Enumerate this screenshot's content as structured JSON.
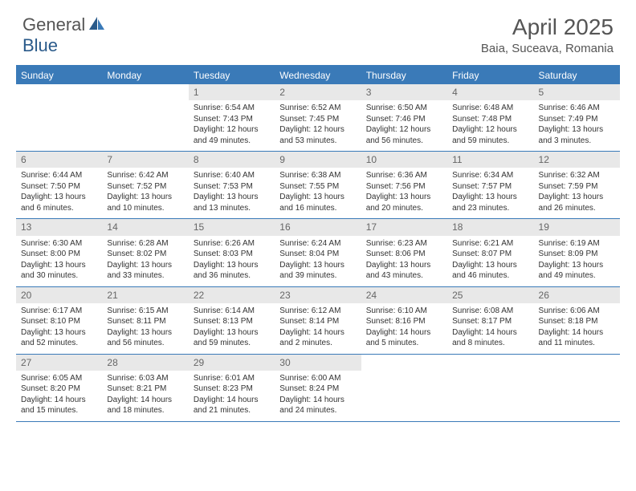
{
  "brand": {
    "part1": "General",
    "part2": "Blue"
  },
  "title": "April 2025",
  "location": "Baia, Suceava, Romania",
  "colors": {
    "primary": "#3a7ab8",
    "header_bg": "#3a7ab8",
    "daynum_bg": "#e8e8e8",
    "text": "#333333",
    "muted": "#666666",
    "white": "#ffffff"
  },
  "days_of_week": [
    "Sunday",
    "Monday",
    "Tuesday",
    "Wednesday",
    "Thursday",
    "Friday",
    "Saturday"
  ],
  "weeks": [
    [
      {
        "n": "",
        "sunrise": "",
        "sunset": "",
        "daylight": ""
      },
      {
        "n": "",
        "sunrise": "",
        "sunset": "",
        "daylight": ""
      },
      {
        "n": "1",
        "sunrise": "Sunrise: 6:54 AM",
        "sunset": "Sunset: 7:43 PM",
        "daylight": "Daylight: 12 hours and 49 minutes."
      },
      {
        "n": "2",
        "sunrise": "Sunrise: 6:52 AM",
        "sunset": "Sunset: 7:45 PM",
        "daylight": "Daylight: 12 hours and 53 minutes."
      },
      {
        "n": "3",
        "sunrise": "Sunrise: 6:50 AM",
        "sunset": "Sunset: 7:46 PM",
        "daylight": "Daylight: 12 hours and 56 minutes."
      },
      {
        "n": "4",
        "sunrise": "Sunrise: 6:48 AM",
        "sunset": "Sunset: 7:48 PM",
        "daylight": "Daylight: 12 hours and 59 minutes."
      },
      {
        "n": "5",
        "sunrise": "Sunrise: 6:46 AM",
        "sunset": "Sunset: 7:49 PM",
        "daylight": "Daylight: 13 hours and 3 minutes."
      }
    ],
    [
      {
        "n": "6",
        "sunrise": "Sunrise: 6:44 AM",
        "sunset": "Sunset: 7:50 PM",
        "daylight": "Daylight: 13 hours and 6 minutes."
      },
      {
        "n": "7",
        "sunrise": "Sunrise: 6:42 AM",
        "sunset": "Sunset: 7:52 PM",
        "daylight": "Daylight: 13 hours and 10 minutes."
      },
      {
        "n": "8",
        "sunrise": "Sunrise: 6:40 AM",
        "sunset": "Sunset: 7:53 PM",
        "daylight": "Daylight: 13 hours and 13 minutes."
      },
      {
        "n": "9",
        "sunrise": "Sunrise: 6:38 AM",
        "sunset": "Sunset: 7:55 PM",
        "daylight": "Daylight: 13 hours and 16 minutes."
      },
      {
        "n": "10",
        "sunrise": "Sunrise: 6:36 AM",
        "sunset": "Sunset: 7:56 PM",
        "daylight": "Daylight: 13 hours and 20 minutes."
      },
      {
        "n": "11",
        "sunrise": "Sunrise: 6:34 AM",
        "sunset": "Sunset: 7:57 PM",
        "daylight": "Daylight: 13 hours and 23 minutes."
      },
      {
        "n": "12",
        "sunrise": "Sunrise: 6:32 AM",
        "sunset": "Sunset: 7:59 PM",
        "daylight": "Daylight: 13 hours and 26 minutes."
      }
    ],
    [
      {
        "n": "13",
        "sunrise": "Sunrise: 6:30 AM",
        "sunset": "Sunset: 8:00 PM",
        "daylight": "Daylight: 13 hours and 30 minutes."
      },
      {
        "n": "14",
        "sunrise": "Sunrise: 6:28 AM",
        "sunset": "Sunset: 8:02 PM",
        "daylight": "Daylight: 13 hours and 33 minutes."
      },
      {
        "n": "15",
        "sunrise": "Sunrise: 6:26 AM",
        "sunset": "Sunset: 8:03 PM",
        "daylight": "Daylight: 13 hours and 36 minutes."
      },
      {
        "n": "16",
        "sunrise": "Sunrise: 6:24 AM",
        "sunset": "Sunset: 8:04 PM",
        "daylight": "Daylight: 13 hours and 39 minutes."
      },
      {
        "n": "17",
        "sunrise": "Sunrise: 6:23 AM",
        "sunset": "Sunset: 8:06 PM",
        "daylight": "Daylight: 13 hours and 43 minutes."
      },
      {
        "n": "18",
        "sunrise": "Sunrise: 6:21 AM",
        "sunset": "Sunset: 8:07 PM",
        "daylight": "Daylight: 13 hours and 46 minutes."
      },
      {
        "n": "19",
        "sunrise": "Sunrise: 6:19 AM",
        "sunset": "Sunset: 8:09 PM",
        "daylight": "Daylight: 13 hours and 49 minutes."
      }
    ],
    [
      {
        "n": "20",
        "sunrise": "Sunrise: 6:17 AM",
        "sunset": "Sunset: 8:10 PM",
        "daylight": "Daylight: 13 hours and 52 minutes."
      },
      {
        "n": "21",
        "sunrise": "Sunrise: 6:15 AM",
        "sunset": "Sunset: 8:11 PM",
        "daylight": "Daylight: 13 hours and 56 minutes."
      },
      {
        "n": "22",
        "sunrise": "Sunrise: 6:14 AM",
        "sunset": "Sunset: 8:13 PM",
        "daylight": "Daylight: 13 hours and 59 minutes."
      },
      {
        "n": "23",
        "sunrise": "Sunrise: 6:12 AM",
        "sunset": "Sunset: 8:14 PM",
        "daylight": "Daylight: 14 hours and 2 minutes."
      },
      {
        "n": "24",
        "sunrise": "Sunrise: 6:10 AM",
        "sunset": "Sunset: 8:16 PM",
        "daylight": "Daylight: 14 hours and 5 minutes."
      },
      {
        "n": "25",
        "sunrise": "Sunrise: 6:08 AM",
        "sunset": "Sunset: 8:17 PM",
        "daylight": "Daylight: 14 hours and 8 minutes."
      },
      {
        "n": "26",
        "sunrise": "Sunrise: 6:06 AM",
        "sunset": "Sunset: 8:18 PM",
        "daylight": "Daylight: 14 hours and 11 minutes."
      }
    ],
    [
      {
        "n": "27",
        "sunrise": "Sunrise: 6:05 AM",
        "sunset": "Sunset: 8:20 PM",
        "daylight": "Daylight: 14 hours and 15 minutes."
      },
      {
        "n": "28",
        "sunrise": "Sunrise: 6:03 AM",
        "sunset": "Sunset: 8:21 PM",
        "daylight": "Daylight: 14 hours and 18 minutes."
      },
      {
        "n": "29",
        "sunrise": "Sunrise: 6:01 AM",
        "sunset": "Sunset: 8:23 PM",
        "daylight": "Daylight: 14 hours and 21 minutes."
      },
      {
        "n": "30",
        "sunrise": "Sunrise: 6:00 AM",
        "sunset": "Sunset: 8:24 PM",
        "daylight": "Daylight: 14 hours and 24 minutes."
      },
      {
        "n": "",
        "sunrise": "",
        "sunset": "",
        "daylight": ""
      },
      {
        "n": "",
        "sunrise": "",
        "sunset": "",
        "daylight": ""
      },
      {
        "n": "",
        "sunrise": "",
        "sunset": "",
        "daylight": ""
      }
    ]
  ]
}
